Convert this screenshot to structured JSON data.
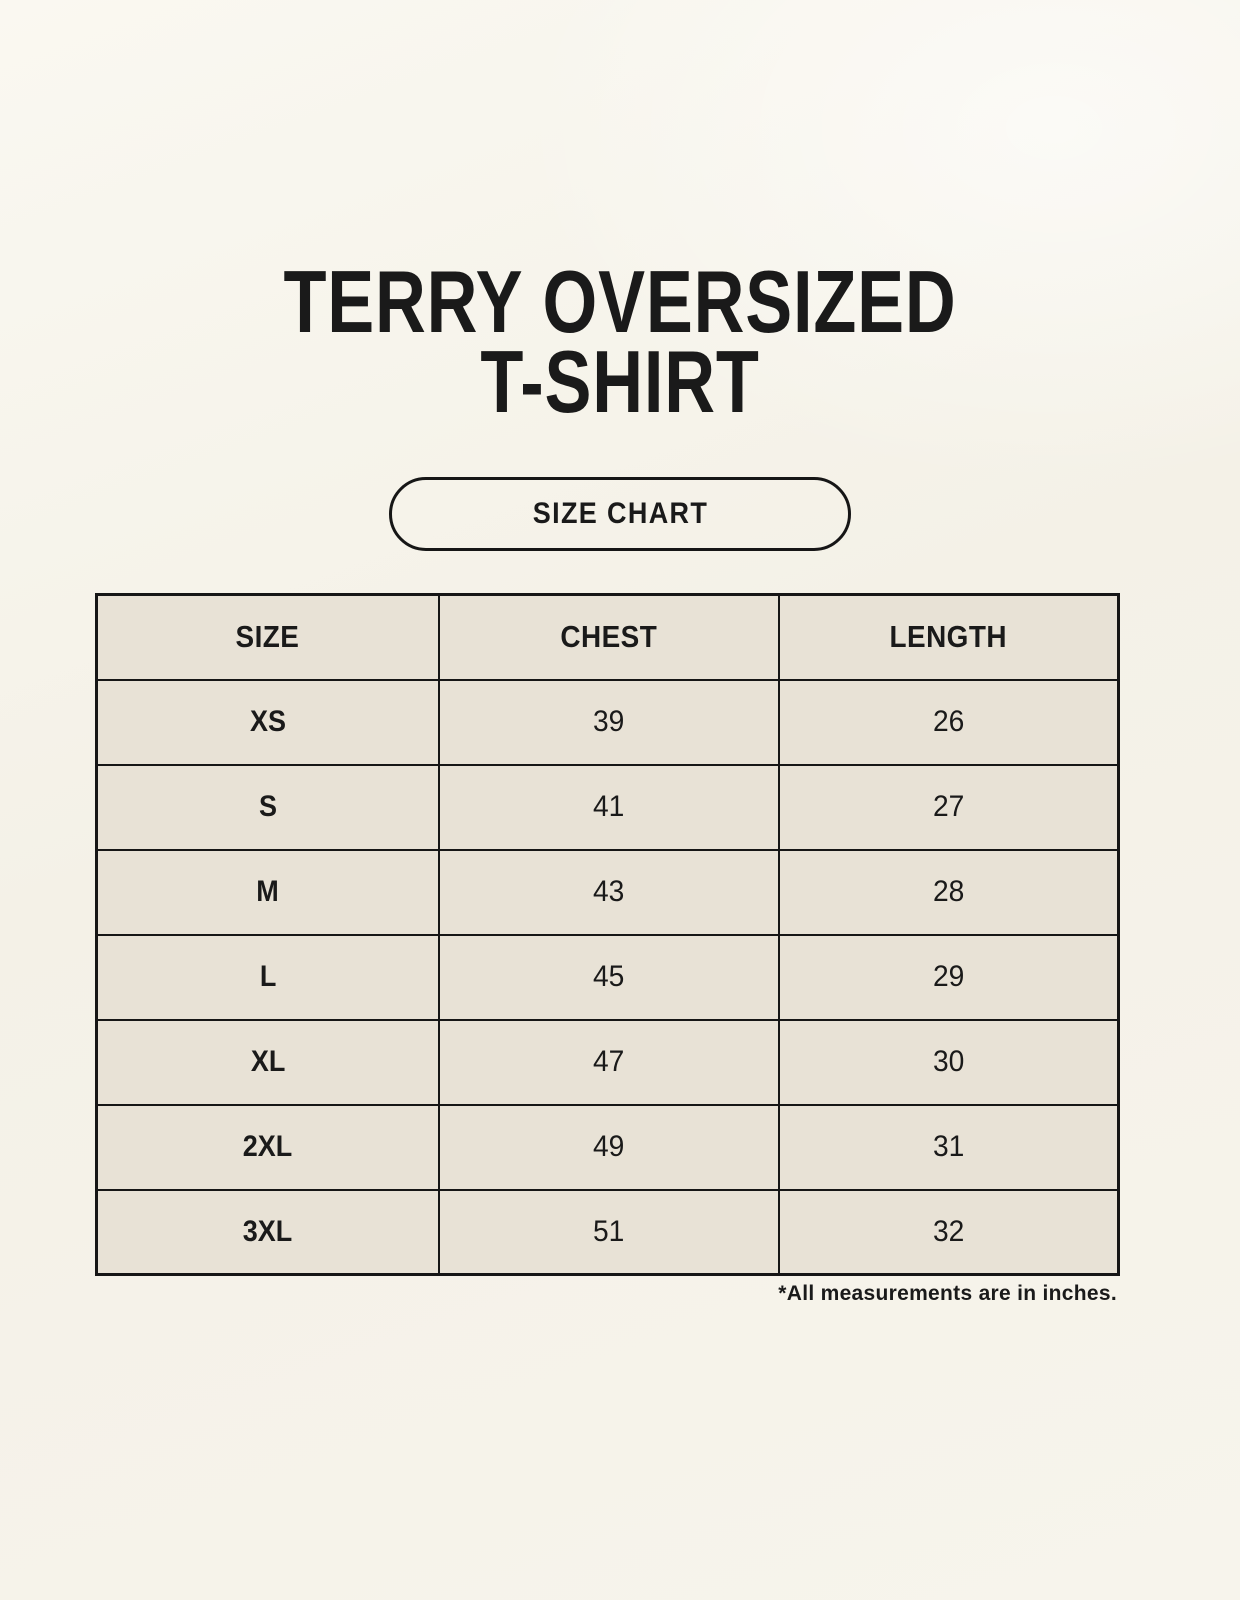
{
  "header": {
    "title_line1": "TERRY OVERSIZED",
    "title_line2": "T-SHIRT",
    "size_chart_label": "SIZE CHART"
  },
  "footnote": "*All measurements are in inches.",
  "chart_data": {
    "type": "table",
    "title": "TERRY OVERSIZED T-SHIRT",
    "columns": [
      "SIZE",
      "CHEST",
      "LENGTH"
    ],
    "rows": [
      [
        "XS",
        39,
        26
      ],
      [
        "S",
        41,
        27
      ],
      [
        "M",
        43,
        28
      ],
      [
        "L",
        45,
        29
      ],
      [
        "XL",
        47,
        30
      ],
      [
        "2XL",
        49,
        31
      ],
      [
        "3XL",
        51,
        32
      ]
    ],
    "units": "inches",
    "note": "*All measurements are in inches."
  },
  "colors": {
    "background": "#f6f3ea",
    "size_column_bg": "#dbd4cf",
    "header_accent_bg": "#efb9a8",
    "cell_bg": "#e8e2d6",
    "border": "#161616",
    "text": "#1a1a1a"
  }
}
